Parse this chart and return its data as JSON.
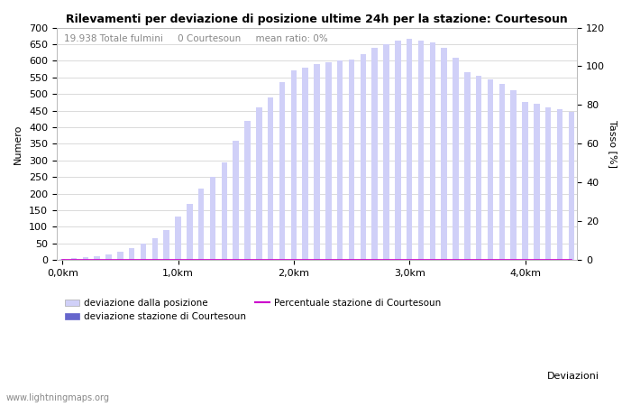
{
  "title": "Rilevamenti per deviazione di posizione ultime 24h per la stazione: Courtesoun",
  "annotation": "19.938 Totale fulmini     0 Courtesoun     mean ratio: 0%",
  "xlabel": "Deviazioni",
  "ylabel_left": "Numero",
  "ylabel_right": "Tasso [%]",
  "ylim_left": [
    0,
    700
  ],
  "ylim_right": [
    0,
    120
  ],
  "yticks_left": [
    0,
    50,
    100,
    150,
    200,
    250,
    300,
    350,
    400,
    450,
    500,
    550,
    600,
    650,
    700
  ],
  "yticks_right": [
    0,
    20,
    40,
    60,
    80,
    100,
    120
  ],
  "xtick_labels": [
    "0,0km",
    "1,0km",
    "2,0km",
    "3,0km",
    "4,0km"
  ],
  "xtick_positions": [
    0,
    10,
    20,
    30,
    40
  ],
  "bar_values": [
    3,
    5,
    8,
    12,
    18,
    25,
    35,
    50,
    65,
    90,
    130,
    170,
    215,
    250,
    295,
    360,
    420,
    460,
    490,
    535,
    570,
    580,
    590,
    595,
    600,
    605,
    620,
    640,
    650,
    660,
    665,
    660,
    655,
    640,
    610,
    565,
    555,
    545,
    530,
    510,
    475,
    470,
    460,
    455,
    445
  ],
  "station_values": [
    0,
    0,
    0,
    0,
    0,
    0,
    0,
    0,
    0,
    0,
    0,
    0,
    0,
    0,
    0,
    0,
    0,
    0,
    0,
    0,
    0,
    0,
    0,
    0,
    0,
    0,
    0,
    0,
    0,
    0,
    0,
    0,
    0,
    0,
    0,
    0,
    0,
    0,
    0,
    0,
    0,
    0,
    0,
    0,
    0
  ],
  "percentage_values": [
    0,
    0,
    0,
    0,
    0,
    0,
    0,
    0,
    0,
    0,
    0,
    0,
    0,
    0,
    0,
    0,
    0,
    0,
    0,
    0,
    0,
    0,
    0,
    0,
    0,
    0,
    0,
    0,
    0,
    0,
    0,
    0,
    0,
    0,
    0,
    0,
    0,
    0,
    0,
    0,
    0,
    0,
    0,
    0,
    0
  ],
  "bar_color": "#d0d0f8",
  "station_bar_color": "#6666cc",
  "percentage_line_color": "#cc00cc",
  "background_color": "#ffffff",
  "grid_color": "#cccccc",
  "watermark": "www.lightningmaps.org",
  "legend_bar1": "deviazione dalla posizione",
  "legend_bar2": "deviazione stazione di Courtesoun",
  "legend_line": "Percentuale stazione di Courtesoun",
  "annotation_color": "#888888",
  "title_fontsize": 9,
  "axis_fontsize": 8,
  "tick_fontsize": 8
}
